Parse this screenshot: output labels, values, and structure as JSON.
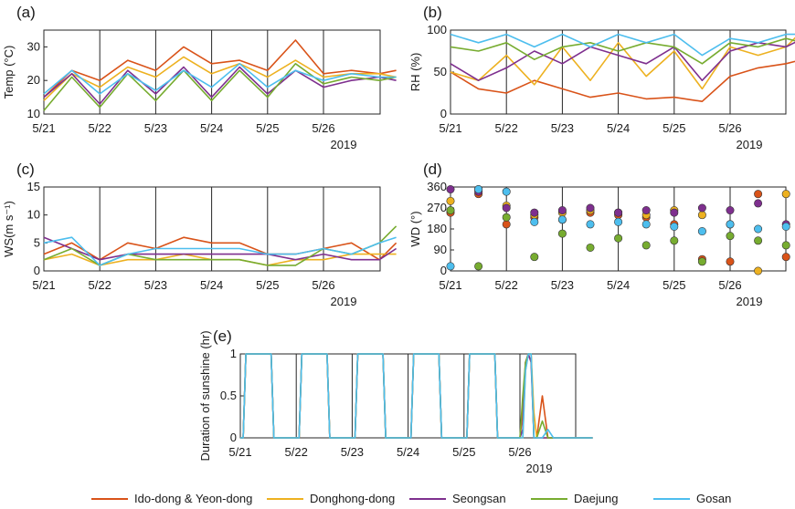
{
  "legend": {
    "series": [
      {
        "name": "Ido-dong & Yeon-dong",
        "color": "#d95319"
      },
      {
        "name": "Donghong-dong",
        "color": "#edb120"
      },
      {
        "name": "Seongsan",
        "color": "#7e2f8e"
      },
      {
        "name": "Daejung",
        "color": "#77ac30"
      },
      {
        "name": "Gosan",
        "color": "#4dbeee"
      }
    ]
  },
  "chart_data": [
    {
      "type": "line",
      "panel_label": "(a)",
      "ylabel": "Temp (°C)",
      "xlabel_year": "2019",
      "categories": [
        "5/21",
        "5/22",
        "5/23",
        "5/24",
        "5/25",
        "5/26"
      ],
      "ylim": [
        10,
        35
      ],
      "yticks": [
        10,
        20,
        30
      ],
      "day_range": [
        0,
        6.3
      ],
      "x": [
        0,
        0.5,
        1,
        1.5,
        2,
        2.5,
        3,
        3.5,
        4,
        4.5,
        5,
        5.5,
        6,
        6.3
      ],
      "series": [
        {
          "name": "Ido-dong & Yeon-dong",
          "values": [
            15,
            23,
            20,
            26,
            23,
            30,
            25,
            26,
            23,
            32,
            22,
            23,
            22,
            23
          ]
        },
        {
          "name": "Donghong-dong",
          "values": [
            14,
            22,
            18,
            24,
            21,
            27,
            22,
            25,
            21,
            26,
            21,
            22,
            22,
            21
          ]
        },
        {
          "name": "Seongsan",
          "values": [
            15,
            22,
            13,
            23,
            16,
            24,
            15,
            24,
            16,
            23,
            18,
            20,
            21,
            20
          ]
        },
        {
          "name": "Daejung",
          "values": [
            11,
            21,
            12,
            22,
            14,
            23,
            14,
            23,
            15,
            25,
            19,
            21,
            20,
            21
          ]
        },
        {
          "name": "Gosan",
          "values": [
            16,
            23,
            16,
            22,
            17,
            23,
            18,
            25,
            18,
            23,
            20,
            22,
            21,
            21
          ]
        }
      ]
    },
    {
      "type": "line",
      "panel_label": "(b)",
      "ylabel": "RH (%)",
      "xlabel_year": "2019",
      "categories": [
        "5/21",
        "5/22",
        "5/23",
        "5/24",
        "5/25",
        "5/26"
      ],
      "ylim": [
        0,
        100
      ],
      "yticks": [
        0,
        50,
        100
      ],
      "day_range": [
        0,
        6.3
      ],
      "x": [
        0,
        0.5,
        1,
        1.5,
        2,
        2.5,
        3,
        3.5,
        4,
        4.5,
        5,
        5.5,
        6,
        6.3
      ],
      "series": [
        {
          "name": "Ido-dong & Yeon-dong",
          "values": [
            50,
            30,
            25,
            40,
            30,
            20,
            25,
            18,
            20,
            15,
            45,
            55,
            60,
            65
          ]
        },
        {
          "name": "Donghong-dong",
          "values": [
            50,
            40,
            70,
            35,
            80,
            40,
            85,
            45,
            75,
            30,
            80,
            70,
            80,
            100
          ]
        },
        {
          "name": "Seongsan",
          "values": [
            60,
            40,
            55,
            75,
            60,
            80,
            70,
            60,
            80,
            40,
            75,
            85,
            80,
            90
          ]
        },
        {
          "name": "Daejung",
          "values": [
            80,
            75,
            85,
            65,
            80,
            85,
            75,
            85,
            80,
            60,
            85,
            80,
            90,
            85
          ]
        },
        {
          "name": "Gosan",
          "values": [
            95,
            85,
            95,
            80,
            95,
            80,
            95,
            85,
            95,
            70,
            90,
            85,
            95,
            95
          ]
        }
      ]
    },
    {
      "type": "line",
      "panel_label": "(c)",
      "ylabel": "WS(m s⁻¹)",
      "xlabel_year": "2019",
      "categories": [
        "5/21",
        "5/22",
        "5/23",
        "5/24",
        "5/25",
        "5/26"
      ],
      "ylim": [
        0,
        15
      ],
      "yticks": [
        0,
        5,
        10,
        15
      ],
      "day_range": [
        0,
        6.3
      ],
      "x": [
        0,
        0.5,
        1,
        1.5,
        2,
        2.5,
        3,
        3.5,
        4,
        4.5,
        5,
        5.5,
        6,
        6.3
      ],
      "series": [
        {
          "name": "Ido-dong & Yeon-dong",
          "values": [
            3,
            5,
            2,
            5,
            4,
            6,
            5,
            5,
            3,
            3,
            4,
            5,
            2,
            5
          ]
        },
        {
          "name": "Donghong-dong",
          "values": [
            2,
            3,
            1,
            2,
            2,
            3,
            2,
            2,
            1,
            2,
            2,
            3,
            3,
            3
          ]
        },
        {
          "name": "Seongsan",
          "values": [
            6,
            4,
            2,
            3,
            3,
            3,
            3,
            3,
            3,
            2,
            3,
            2,
            2,
            4
          ]
        },
        {
          "name": "Daejung",
          "values": [
            2,
            4,
            1,
            3,
            2,
            2,
            2,
            2,
            1,
            1,
            4,
            3,
            5,
            8
          ]
        },
        {
          "name": "Gosan",
          "values": [
            5,
            6,
            1,
            3,
            4,
            4,
            4,
            4,
            3,
            3,
            4,
            3,
            5,
            6
          ]
        }
      ]
    },
    {
      "type": "scatter",
      "panel_label": "(d)",
      "ylabel": "WD (°)",
      "xlabel_year": "2019",
      "categories": [
        "5/21",
        "5/22",
        "5/23",
        "5/24",
        "5/25",
        "5/26"
      ],
      "ylim": [
        0,
        360
      ],
      "yticks": [
        0,
        90,
        180,
        270,
        360
      ],
      "day_range": [
        0,
        6.3
      ],
      "x": [
        0,
        0.5,
        1,
        1.5,
        2,
        2.5,
        3,
        3.5,
        4,
        4.5,
        5,
        5.5,
        6,
        6.3
      ],
      "series": [
        {
          "name": "Ido-dong & Yeon-dong",
          "values": [
            250,
            330,
            200,
            230,
            220,
            250,
            240,
            230,
            200,
            50,
            40,
            330,
            60,
            90
          ]
        },
        {
          "name": "Donghong-dong",
          "values": [
            300,
            350,
            280,
            240,
            250,
            260,
            250,
            240,
            260,
            240,
            200,
            0,
            330,
            300
          ]
        },
        {
          "name": "Seongsan",
          "values": [
            350,
            340,
            270,
            250,
            260,
            270,
            250,
            260,
            250,
            270,
            260,
            290,
            200,
            240
          ]
        },
        {
          "name": "Daejung",
          "values": [
            260,
            20,
            230,
            60,
            160,
            100,
            140,
            110,
            130,
            40,
            150,
            130,
            110,
            130
          ]
        },
        {
          "name": "Gosan",
          "values": [
            20,
            350,
            340,
            210,
            220,
            200,
            210,
            200,
            190,
            170,
            200,
            180,
            190,
            180
          ]
        }
      ]
    },
    {
      "type": "line",
      "panel_label": "(e)",
      "ylabel": "Duration of sunshine (hr)",
      "xlabel_year": "2019",
      "categories": [
        "5/21",
        "5/22",
        "5/23",
        "5/24",
        "5/25",
        "5/26"
      ],
      "ylim": [
        0,
        1
      ],
      "yticks": [
        0,
        0.5,
        1
      ],
      "ytick_labels": [
        "0",
        "0.5",
        "1"
      ],
      "day_range": [
        0,
        6.3
      ],
      "x": [
        0,
        0.05,
        0.1,
        0.15,
        0.55,
        0.6,
        0.65,
        1,
        1.05,
        1.1,
        1.15,
        1.55,
        1.6,
        1.65,
        2,
        2.05,
        2.1,
        2.15,
        2.55,
        2.6,
        2.65,
        3,
        3.05,
        3.1,
        3.15,
        3.55,
        3.6,
        3.65,
        4,
        4.05,
        4.1,
        4.15,
        4.55,
        4.6,
        4.65,
        4.7,
        4.75,
        5,
        5.05,
        5.1,
        5.15,
        5.2,
        5.25,
        5.3,
        5.4,
        5.5,
        5.6,
        6,
        6.3
      ],
      "series": [
        {
          "name": "Ido-dong & Yeon-dong",
          "values": [
            0,
            0,
            1,
            1,
            1,
            0,
            0,
            0,
            0,
            1,
            1,
            1,
            0,
            0,
            0,
            0,
            1,
            1,
            1,
            0,
            0,
            0,
            0,
            1,
            1,
            1,
            0,
            0,
            0,
            0,
            1,
            1,
            1,
            0,
            0,
            0,
            0,
            0,
            0.3,
            0.9,
            1,
            1,
            0,
            0,
            0.5,
            0,
            0,
            0,
            0
          ]
        },
        {
          "name": "Donghong-dong",
          "values": [
            0,
            0,
            1,
            1,
            1,
            0,
            0,
            0,
            0,
            1,
            1,
            1,
            0,
            0,
            0,
            0,
            1,
            1,
            1,
            0,
            0,
            0,
            0,
            1,
            1,
            1,
            0,
            0,
            0,
            0,
            1,
            1,
            1,
            0,
            0,
            0,
            0,
            0,
            0,
            0.8,
            1,
            1,
            0.3,
            0,
            0,
            0,
            0,
            0,
            0
          ]
        },
        {
          "name": "Seongsan",
          "values": [
            0,
            0,
            1,
            1,
            1,
            0,
            0,
            0,
            0,
            1,
            1,
            1,
            0,
            0,
            0,
            0,
            1,
            1,
            1,
            0,
            0,
            0,
            0,
            1,
            1,
            1,
            0,
            0,
            0,
            0,
            1,
            1,
            1,
            0,
            0,
            0,
            0,
            0,
            0.1,
            0.9,
            1,
            0.9,
            0,
            0,
            0,
            0,
            0,
            0,
            0
          ]
        },
        {
          "name": "Daejung",
          "values": [
            0,
            0,
            1,
            1,
            1,
            0,
            0,
            0,
            0,
            1,
            1,
            1,
            0,
            0,
            0,
            0,
            1,
            1,
            1,
            0,
            0,
            0,
            0,
            1,
            1,
            1,
            0,
            0,
            0,
            0,
            1,
            1,
            1,
            0,
            0,
            0,
            0,
            0,
            0.5,
            0.9,
            1,
            1,
            0,
            0,
            0.2,
            0,
            0,
            0,
            0
          ]
        },
        {
          "name": "Gosan",
          "values": [
            0,
            0,
            1,
            1,
            1,
            0,
            0,
            0,
            0,
            1,
            1,
            1,
            0,
            0,
            0,
            0,
            1,
            1,
            1,
            0,
            0,
            0,
            0,
            1,
            1,
            1,
            0,
            0,
            0,
            0,
            1,
            1,
            1,
            0,
            0,
            0,
            0,
            0,
            0,
            0.8,
            1,
            1,
            0,
            0,
            0,
            0.1,
            0,
            0,
            0
          ]
        }
      ]
    }
  ]
}
